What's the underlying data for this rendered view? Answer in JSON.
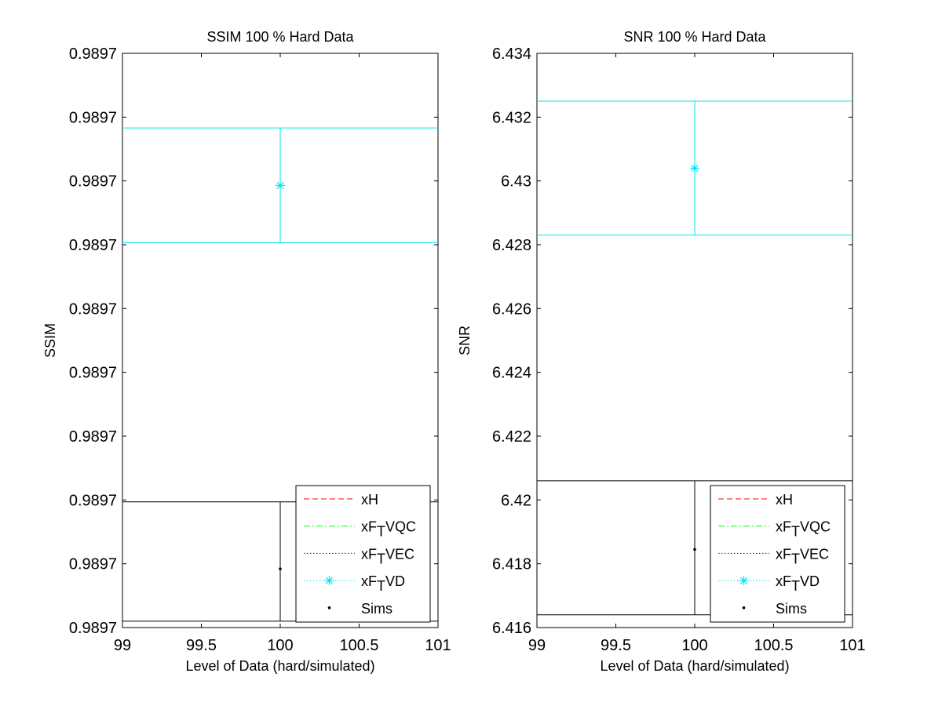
{
  "chart_data": [
    {
      "type": "scatter",
      "title": "SSIM 100 % Hard Data",
      "xlabel": "Level of Data (hard/simulated)",
      "ylabel": "SSIM",
      "xlim": [
        99,
        101
      ],
      "ylim": [
        0,
        9
      ],
      "x_ticks": [
        {
          "value": 99,
          "label": "99"
        },
        {
          "value": 99.5,
          "label": "99.5"
        },
        {
          "value": 100,
          "label": "100"
        },
        {
          "value": 100.5,
          "label": "100.5"
        },
        {
          "value": 101,
          "label": "101"
        }
      ],
      "y_ticks": [
        {
          "value": 0,
          "label": "0.9897"
        },
        {
          "value": 1,
          "label": "0.9897"
        },
        {
          "value": 2,
          "label": "0.9897"
        },
        {
          "value": 3,
          "label": "0.9897"
        },
        {
          "value": 4,
          "label": "0.9897"
        },
        {
          "value": 5,
          "label": "0.9897"
        },
        {
          "value": 6,
          "label": "0.9897"
        },
        {
          "value": 7,
          "label": "0.9897"
        },
        {
          "value": 8,
          "label": "0.9897"
        },
        {
          "value": 9,
          "label": "0.9897"
        }
      ],
      "grid": false,
      "legend_position": "bottom-right",
      "series": [
        {
          "name": "xH",
          "color": "#ff0000",
          "line": "dashed",
          "points": []
        },
        {
          "name": "xF_TVQC",
          "color": "#00ff00",
          "line": "dashdot",
          "points": []
        },
        {
          "name": "xF_TVEC",
          "color": "#0000ff",
          "line": "dotted",
          "points": []
        },
        {
          "name": "xF_TVD",
          "color": "#00e5ee",
          "line": "dotted",
          "marker": "star",
          "points": [
            {
              "x": 100,
              "y": 6.93,
              "low": 6.03,
              "high": 7.83
            }
          ]
        },
        {
          "name": "Sims",
          "color": "#000000",
          "marker": "dot",
          "points": [
            {
              "x": 100,
              "y": 0.92,
              "low": 0.1,
              "high": 1.97
            }
          ]
        }
      ]
    },
    {
      "type": "scatter",
      "title": "SNR 100 % Hard Data",
      "xlabel": "Level of Data (hard/simulated)",
      "ylabel": "SNR",
      "xlim": [
        99,
        101
      ],
      "ylim": [
        6.416,
        6.434
      ],
      "x_ticks": [
        {
          "value": 99,
          "label": "99"
        },
        {
          "value": 99.5,
          "label": "99.5"
        },
        {
          "value": 100,
          "label": "100"
        },
        {
          "value": 100.5,
          "label": "100.5"
        },
        {
          "value": 101,
          "label": "101"
        }
      ],
      "y_ticks": [
        {
          "value": 6.416,
          "label": "6.416"
        },
        {
          "value": 6.418,
          "label": "6.418"
        },
        {
          "value": 6.42,
          "label": "6.42"
        },
        {
          "value": 6.422,
          "label": "6.422"
        },
        {
          "value": 6.424,
          "label": "6.424"
        },
        {
          "value": 6.426,
          "label": "6.426"
        },
        {
          "value": 6.428,
          "label": "6.428"
        },
        {
          "value": 6.43,
          "label": "6.43"
        },
        {
          "value": 6.432,
          "label": "6.432"
        },
        {
          "value": 6.434,
          "label": "6.434"
        }
      ],
      "grid": false,
      "legend_position": "bottom-right",
      "series": [
        {
          "name": "xH",
          "color": "#ff0000",
          "line": "dashed",
          "points": []
        },
        {
          "name": "xF_TVQC",
          "color": "#00ff00",
          "line": "dashdot",
          "points": []
        },
        {
          "name": "xF_TVEC",
          "color": "#0000ff",
          "line": "dotted",
          "points": []
        },
        {
          "name": "xF_TVD",
          "color": "#00e5ee",
          "line": "dotted",
          "marker": "star",
          "points": [
            {
              "x": 100,
              "y": 6.4304,
              "low": 6.4283,
              "high": 6.4325
            }
          ]
        },
        {
          "name": "Sims",
          "color": "#000000",
          "marker": "dot",
          "points": [
            {
              "x": 100,
              "y": 6.41845,
              "low": 6.4164,
              "high": 6.4206
            }
          ]
        }
      ]
    }
  ]
}
